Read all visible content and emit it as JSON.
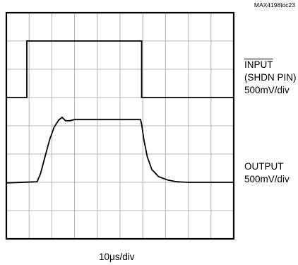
{
  "chart_data": {
    "type": "line",
    "tag": "MAX4198toc23",
    "x_units": "div",
    "y_units": "div",
    "xlim": [
      0,
      10
    ],
    "ylim": [
      0,
      8
    ],
    "grid": true,
    "xlabel": "10μs/div",
    "series": [
      {
        "name": "INPUT",
        "name_note": "(SHDN PIN)",
        "scale": "500mV/div",
        "x": [
          0,
          0.9,
          0.9,
          5.95,
          5.95,
          10
        ],
        "y": [
          5.0,
          5.0,
          7.0,
          7.0,
          5.0,
          5.0
        ]
      },
      {
        "name": "OUTPUT",
        "scale": "500mV/div",
        "x": [
          0,
          1.35,
          1.5,
          1.7,
          1.9,
          2.1,
          2.3,
          2.45,
          2.6,
          2.8,
          3.0,
          4.5,
          5.9,
          5.95,
          6.05,
          6.2,
          6.4,
          6.7,
          7.1,
          7.5,
          8.0,
          10
        ],
        "y": [
          1.98,
          2.02,
          2.3,
          2.9,
          3.5,
          3.95,
          4.2,
          4.3,
          4.18,
          4.18,
          4.22,
          4.22,
          4.22,
          4.05,
          3.5,
          2.9,
          2.45,
          2.2,
          2.08,
          2.02,
          2.0,
          2.0
        ]
      }
    ]
  }
}
